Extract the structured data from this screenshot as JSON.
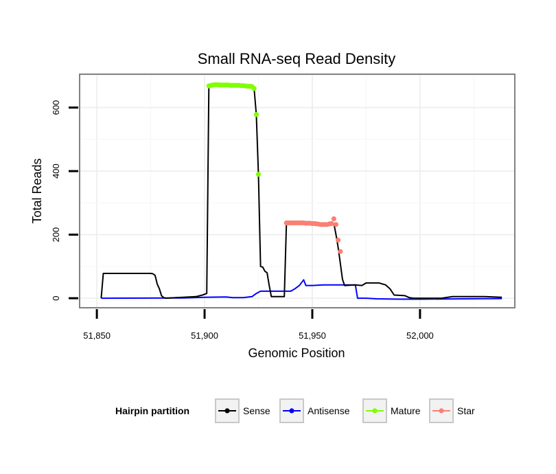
{
  "chart_data": {
    "type": "line",
    "title": "Small RNA-seq Read Density",
    "xlabel": "Genomic Position",
    "ylabel": "Total Reads",
    "xlim": [
      51842,
      52044
    ],
    "ylim": [
      -30,
      705
    ],
    "grid": true,
    "x_ticks": [
      51850,
      51900,
      51950,
      52000
    ],
    "x_tick_labels": [
      "51,850",
      "51,900",
      "51,950",
      "52,000"
    ],
    "y_ticks": [
      0,
      200,
      400,
      600
    ],
    "y_tick_labels": [
      "0",
      "200",
      "400",
      "600"
    ],
    "legend": {
      "title": "Hairpin partition",
      "position": "bottom",
      "entries": [
        {
          "name": "Sense",
          "color": "#000000"
        },
        {
          "name": "Antisense",
          "color": "#0000ff"
        },
        {
          "name": "Mature",
          "color": "#7fff00"
        },
        {
          "name": "Star",
          "color": "#fa8072"
        }
      ]
    },
    "series": [
      {
        "name": "Sense",
        "color": "#000000",
        "points": [
          [
            51852,
            0
          ],
          [
            51853,
            78
          ],
          [
            51875,
            78
          ],
          [
            51876,
            77
          ],
          [
            51877,
            72
          ],
          [
            51878,
            45
          ],
          [
            51879,
            30
          ],
          [
            51880,
            8
          ],
          [
            51881,
            2
          ],
          [
            51882,
            0
          ],
          [
            51884,
            1
          ],
          [
            51890,
            3
          ],
          [
            51896,
            5
          ],
          [
            51899,
            10
          ],
          [
            51901,
            15
          ],
          [
            51902,
            670
          ],
          [
            51920,
            668
          ],
          [
            51923,
            660
          ],
          [
            51924,
            578
          ],
          [
            51925,
            390
          ],
          [
            51926,
            100
          ],
          [
            51927,
            98
          ],
          [
            51928,
            85
          ],
          [
            51929,
            80
          ],
          [
            51930,
            40
          ],
          [
            51931,
            5
          ],
          [
            51937,
            5
          ],
          [
            51938,
            237
          ],
          [
            51958,
            235
          ],
          [
            51960,
            235
          ],
          [
            51961,
            200
          ],
          [
            51962,
            160
          ],
          [
            51963,
            110
          ],
          [
            51964,
            60
          ],
          [
            51965,
            40
          ],
          [
            51970,
            42
          ],
          [
            51973,
            40
          ],
          [
            51975,
            48
          ],
          [
            51981,
            48
          ],
          [
            51984,
            42
          ],
          [
            51986,
            30
          ],
          [
            51988,
            10
          ],
          [
            51993,
            8
          ],
          [
            51995,
            2
          ],
          [
            51997,
            0
          ],
          [
            52010,
            0
          ],
          [
            52015,
            5
          ],
          [
            52030,
            5
          ],
          [
            52038,
            3
          ]
        ]
      },
      {
        "name": "Antisense",
        "color": "#0000ff",
        "points": [
          [
            51852,
            0
          ],
          [
            51890,
            1
          ],
          [
            51900,
            3
          ],
          [
            51910,
            4
          ],
          [
            51913,
            2
          ],
          [
            51918,
            2
          ],
          [
            51922,
            5
          ],
          [
            51924,
            15
          ],
          [
            51926,
            22
          ],
          [
            51932,
            22
          ],
          [
            51936,
            22
          ],
          [
            51940,
            22
          ],
          [
            51942,
            30
          ],
          [
            51944,
            40
          ],
          [
            51946,
            58
          ],
          [
            51947,
            40
          ],
          [
            51950,
            40
          ],
          [
            51955,
            42
          ],
          [
            51962,
            42
          ],
          [
            51970,
            42
          ],
          [
            51971,
            0
          ],
          [
            51975,
            0
          ],
          [
            51980,
            -2
          ],
          [
            51990,
            -3
          ],
          [
            52000,
            -3
          ],
          [
            52020,
            -2
          ],
          [
            52038,
            -1
          ]
        ]
      },
      {
        "name": "Mature",
        "color": "#7fff00",
        "points": [
          [
            51902,
            668
          ],
          [
            51903,
            670
          ],
          [
            51904,
            671
          ],
          [
            51905,
            672
          ],
          [
            51906,
            672
          ],
          [
            51907,
            671
          ],
          [
            51908,
            671
          ],
          [
            51909,
            671
          ],
          [
            51910,
            671
          ],
          [
            51911,
            671
          ],
          [
            51912,
            670
          ],
          [
            51913,
            670
          ],
          [
            51914,
            670
          ],
          [
            51915,
            670
          ],
          [
            51916,
            670
          ],
          [
            51917,
            669
          ],
          [
            51918,
            669
          ],
          [
            51919,
            668
          ],
          [
            51920,
            667
          ],
          [
            51921,
            667
          ],
          [
            51922,
            666
          ],
          [
            51923,
            660
          ],
          [
            51924,
            578
          ],
          [
            51925,
            390
          ]
        ]
      },
      {
        "name": "Star",
        "color": "#fa8072",
        "points": [
          [
            51938,
            237
          ],
          [
            51939,
            237
          ],
          [
            51940,
            237
          ],
          [
            51941,
            237
          ],
          [
            51942,
            237
          ],
          [
            51943,
            237
          ],
          [
            51944,
            237
          ],
          [
            51945,
            237
          ],
          [
            51946,
            237
          ],
          [
            51947,
            236
          ],
          [
            51948,
            236
          ],
          [
            51949,
            236
          ],
          [
            51950,
            235
          ],
          [
            51951,
            235
          ],
          [
            51952,
            234
          ],
          [
            51953,
            233
          ],
          [
            51954,
            232
          ],
          [
            51955,
            232
          ],
          [
            51956,
            232
          ],
          [
            51957,
            232
          ],
          [
            51958,
            234
          ],
          [
            51959,
            235
          ],
          [
            51960,
            250
          ],
          [
            51961,
            232
          ],
          [
            51962,
            183
          ],
          [
            51963,
            147
          ]
        ]
      }
    ]
  }
}
